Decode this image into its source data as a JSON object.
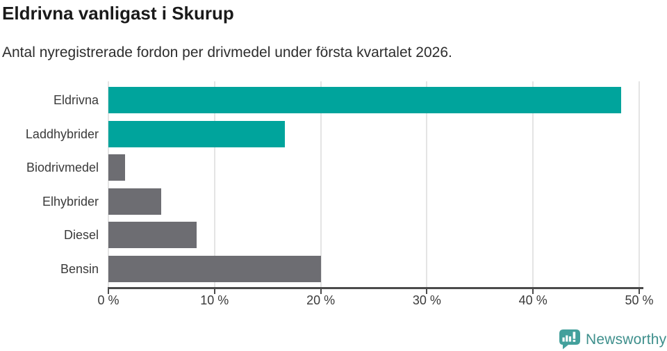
{
  "header": {
    "title": "Eldrivna vanligast i Skurup",
    "subtitle": "Antal nyregistrerade fordon per drivmedel under första kvartalet 2026."
  },
  "chart_data": {
    "type": "bar",
    "orientation": "horizontal",
    "title": "Eldrivna vanligast i Skurup",
    "subtitle": "Antal nyregistrerade fordon per drivmedel under första kvartalet 2026.",
    "categories": [
      "Eldrivna",
      "Laddhybrider",
      "Biodrivmedel",
      "Elhybrider",
      "Diesel",
      "Bensin"
    ],
    "values": [
      48.3,
      16.6,
      1.6,
      5.0,
      8.3,
      20.0
    ],
    "unit": "%",
    "bar_colors": [
      "#00a49c",
      "#00a49c",
      "#6d6d72",
      "#6d6d72",
      "#6d6d72",
      "#6d6d72"
    ],
    "xlim": [
      0,
      50
    ],
    "x_ticks": [
      0,
      10,
      20,
      30,
      40,
      50
    ],
    "x_tick_labels": [
      "0 %",
      "10 %",
      "20 %",
      "30 %",
      "40 %",
      "50 %"
    ],
    "xlabel": "",
    "ylabel": "",
    "grid": "vertical-gridlines",
    "legend": "none"
  },
  "branding": {
    "logo_text": "Newsworthy",
    "logo_icon": "bar-chart-speech-bubble-icon"
  },
  "colors": {
    "accent_teal": "#00a49c",
    "neutral_gray": "#6d6d72",
    "logo_teal": "#43a09c",
    "logo_text_teal": "#3e8f8c",
    "axis": "#4b4b4b",
    "gridline": "#e4e4e4",
    "title_text": "#1a1a1a",
    "body_text": "#3a3a3a"
  }
}
